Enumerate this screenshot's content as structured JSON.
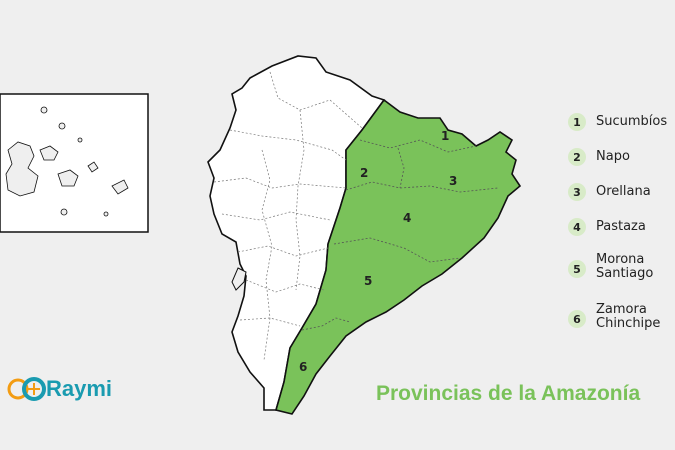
{
  "map": {
    "provinces": [
      {
        "number": "1",
        "name": "Sucumbíos"
      },
      {
        "number": "2",
        "name": "Napo"
      },
      {
        "number": "3",
        "name": "Orellana"
      },
      {
        "number": "4",
        "name": "Pastaza"
      },
      {
        "number": "5",
        "name": "Morona\nSantiago"
      },
      {
        "number": "6",
        "name": "Zamora\nChinchipe"
      }
    ],
    "title": "Provincias de la Amazonía",
    "highlight_color": "#7ac25a",
    "land_color": "#ffffff",
    "background_color": "#efefef"
  },
  "logo": {
    "text": "Raymi",
    "color": "#1a9bb0",
    "accent_color": "#f39c12"
  }
}
